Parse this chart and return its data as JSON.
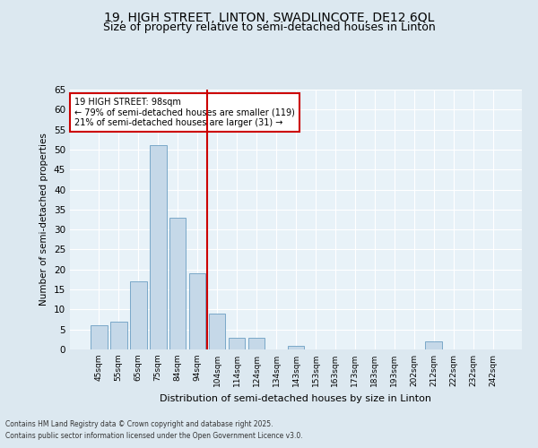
{
  "title1": "19, HIGH STREET, LINTON, SWADLINCOTE, DE12 6QL",
  "title2": "Size of property relative to semi-detached houses in Linton",
  "xlabel": "Distribution of semi-detached houses by size in Linton",
  "ylabel": "Number of semi-detached properties",
  "categories": [
    "45sqm",
    "55sqm",
    "65sqm",
    "75sqm",
    "84sqm",
    "94sqm",
    "104sqm",
    "114sqm",
    "124sqm",
    "134sqm",
    "143sqm",
    "153sqm",
    "163sqm",
    "173sqm",
    "183sqm",
    "193sqm",
    "202sqm",
    "212sqm",
    "222sqm",
    "232sqm",
    "242sqm"
  ],
  "values": [
    6,
    7,
    17,
    51,
    33,
    19,
    9,
    3,
    3,
    0,
    1,
    0,
    0,
    0,
    0,
    0,
    0,
    2,
    0,
    0,
    0
  ],
  "bar_color": "#c5d8e8",
  "bar_edge_color": "#7aa8c8",
  "vline_x": 5.5,
  "vline_color": "#cc0000",
  "annotation_title": "19 HIGH STREET: 98sqm",
  "annotation_line1": "← 79% of semi-detached houses are smaller (119)",
  "annotation_line2": "21% of semi-detached houses are larger (31) →",
  "annotation_box_color": "#cc0000",
  "ylim": [
    0,
    65
  ],
  "yticks": [
    0,
    5,
    10,
    15,
    20,
    25,
    30,
    35,
    40,
    45,
    50,
    55,
    60,
    65
  ],
  "footnote1": "Contains HM Land Registry data © Crown copyright and database right 2025.",
  "footnote2": "Contains public sector information licensed under the Open Government Licence v3.0.",
  "bg_color": "#dce8f0",
  "plot_bg_color": "#e8f2f8",
  "title1_fontsize": 10,
  "title2_fontsize": 9
}
